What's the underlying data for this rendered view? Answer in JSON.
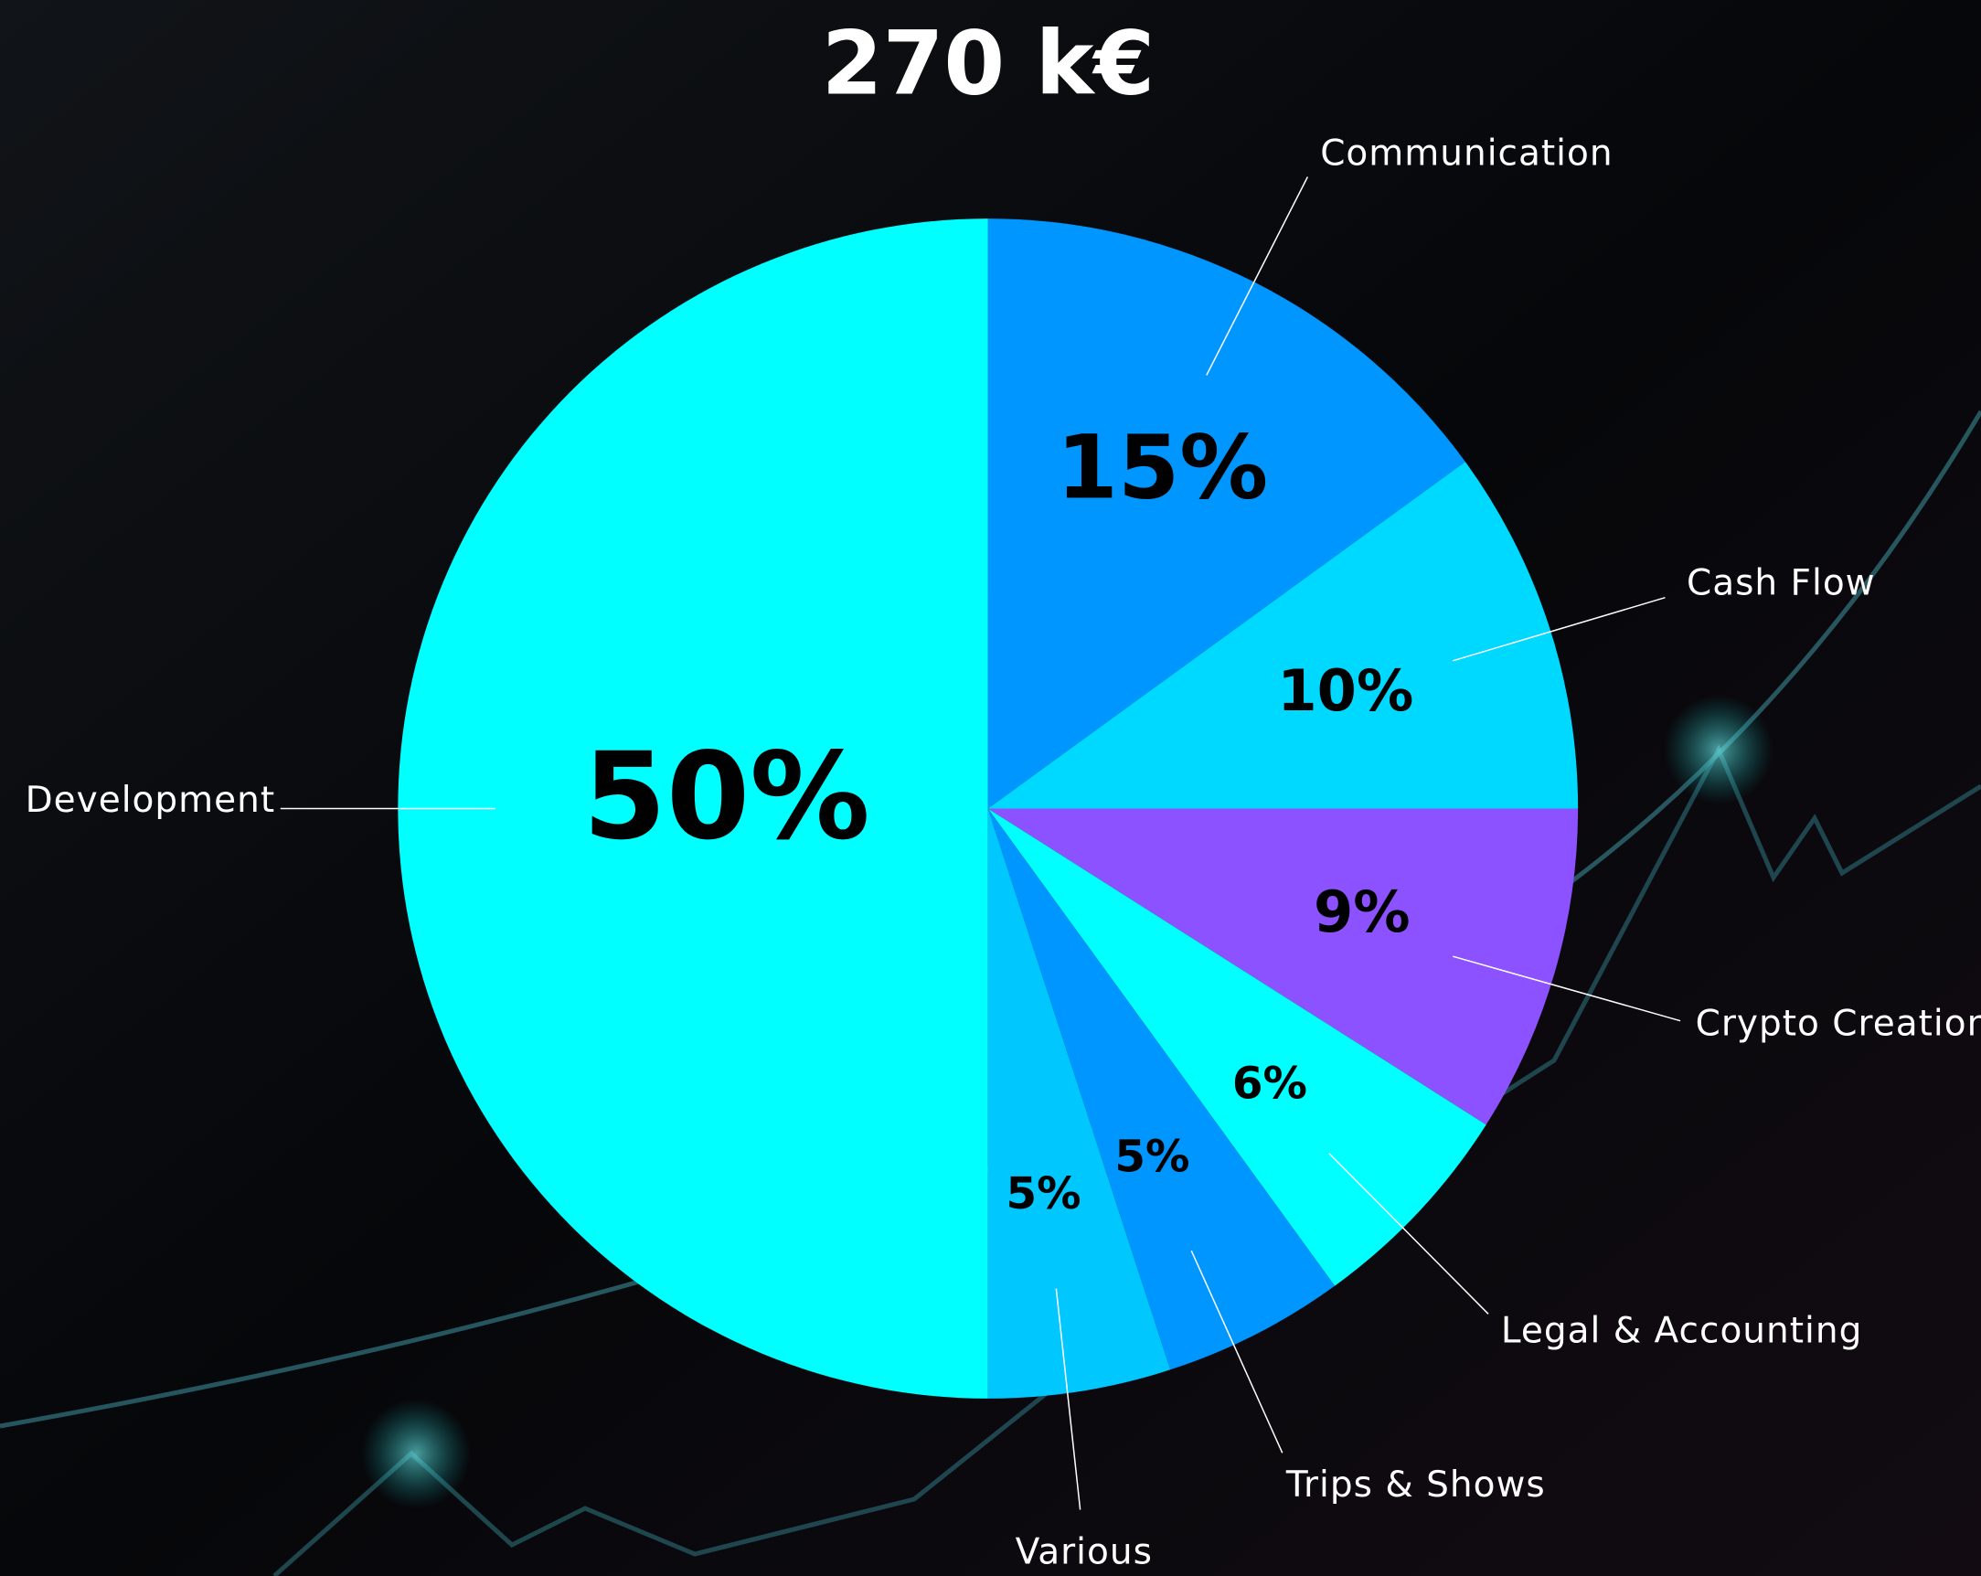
{
  "chart_data": {
    "type": "pie",
    "title": "270 k€",
    "categories": [
      "Communication",
      "Cash Flow",
      "Crypto Creation",
      "Legal & Accounting",
      "Trips & Shows",
      "Various",
      "Development"
    ],
    "values": [
      15,
      10,
      9,
      6,
      5,
      5,
      50
    ],
    "value_labels": [
      "15%",
      "10%",
      "9%",
      "6%",
      "5%",
      "5%",
      "50%"
    ],
    "colors": [
      "#0096ff",
      "#00d9ff",
      "#8c52ff",
      "#00ffff",
      "#0096ff",
      "#00c8ff",
      "#00ffff"
    ]
  }
}
